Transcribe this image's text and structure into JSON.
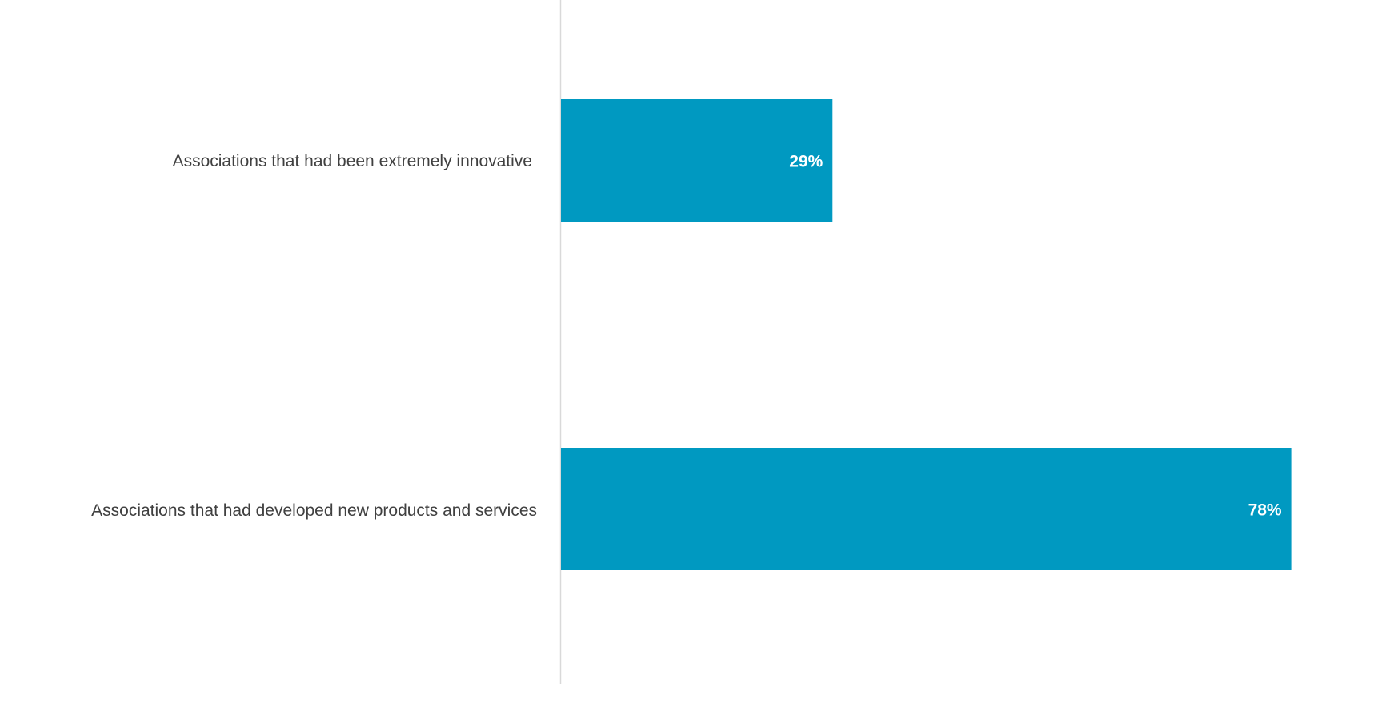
{
  "chart_data": {
    "type": "bar",
    "orientation": "horizontal",
    "categories": [
      "Associations that had been extremely innovative",
      "Associations that had developed new products and services"
    ],
    "values": [
      29,
      78
    ],
    "data_labels": [
      "29%",
      "78%"
    ],
    "unit": "%",
    "xlim": [
      0,
      100
    ],
    "grid": false,
    "legend": "none",
    "colors": {
      "bar": "#0099C1",
      "axis": "#D9D9D9",
      "category_text": "#404040",
      "label_text": "#FFFFFF"
    }
  }
}
